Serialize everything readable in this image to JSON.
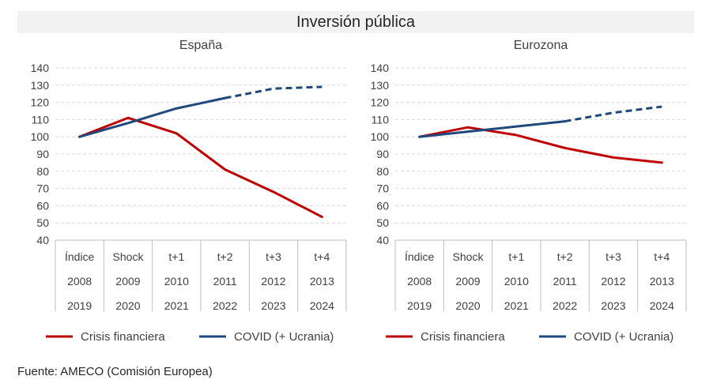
{
  "title": "Inversión pública",
  "source": "Fuente: AMECO (Comisión Europea)",
  "colors": {
    "crisis": "#c00000",
    "covid": "#1f497d",
    "grid": "#d9d9d9",
    "axis": "#bfbfbf",
    "text": "#404040"
  },
  "chart_data": [
    {
      "type": "line",
      "title": "España",
      "categories": [
        "Índice",
        "Shock",
        "t+1",
        "t+2",
        "t+3",
        "t+4"
      ],
      "category_rows": [
        [
          "Índice",
          "Shock",
          "t+1",
          "t+2",
          "t+3",
          "t+4"
        ],
        [
          "2008",
          "2009",
          "2010",
          "2011",
          "2012",
          "2013"
        ],
        [
          "2019",
          "2020",
          "2021",
          "2022",
          "2023",
          "2024"
        ]
      ],
      "ylim": [
        40,
        140
      ],
      "yticks": [
        40,
        50,
        60,
        70,
        80,
        90,
        100,
        110,
        120,
        130,
        140
      ],
      "grid": true,
      "legend": "bottom",
      "series": [
        {
          "name": "Crisis financiera",
          "color": "#c00000",
          "values": [
            100,
            111,
            102,
            81,
            68,
            53.5
          ],
          "dashed_from": null
        },
        {
          "name": "COVID (+ Ucrania)",
          "color": "#1f497d",
          "values": [
            100,
            108,
            116.5,
            122.5,
            128,
            129
          ],
          "dashed_from": 3
        }
      ]
    },
    {
      "type": "line",
      "title": "Eurozona",
      "categories": [
        "Índice",
        "Shock",
        "t+1",
        "t+2",
        "t+3",
        "t+4"
      ],
      "category_rows": [
        [
          "Índice",
          "Shock",
          "t+1",
          "t+2",
          "t+3",
          "t+4"
        ],
        [
          "2008",
          "2009",
          "2010",
          "2011",
          "2012",
          "2013"
        ],
        [
          "2019",
          "2020",
          "2021",
          "2022",
          "2023",
          "2024"
        ]
      ],
      "ylim": [
        40,
        140
      ],
      "yticks": [
        40,
        50,
        60,
        70,
        80,
        90,
        100,
        110,
        120,
        130,
        140
      ],
      "grid": true,
      "legend": "bottom",
      "series": [
        {
          "name": "Crisis financiera",
          "color": "#c00000",
          "values": [
            100,
            105.5,
            101,
            93.5,
            88,
            85
          ],
          "dashed_from": null
        },
        {
          "name": "COVID (+ Ucrania)",
          "color": "#1f497d",
          "values": [
            100,
            103,
            106,
            109,
            114,
            117.5
          ],
          "dashed_from": 3
        }
      ]
    }
  ]
}
